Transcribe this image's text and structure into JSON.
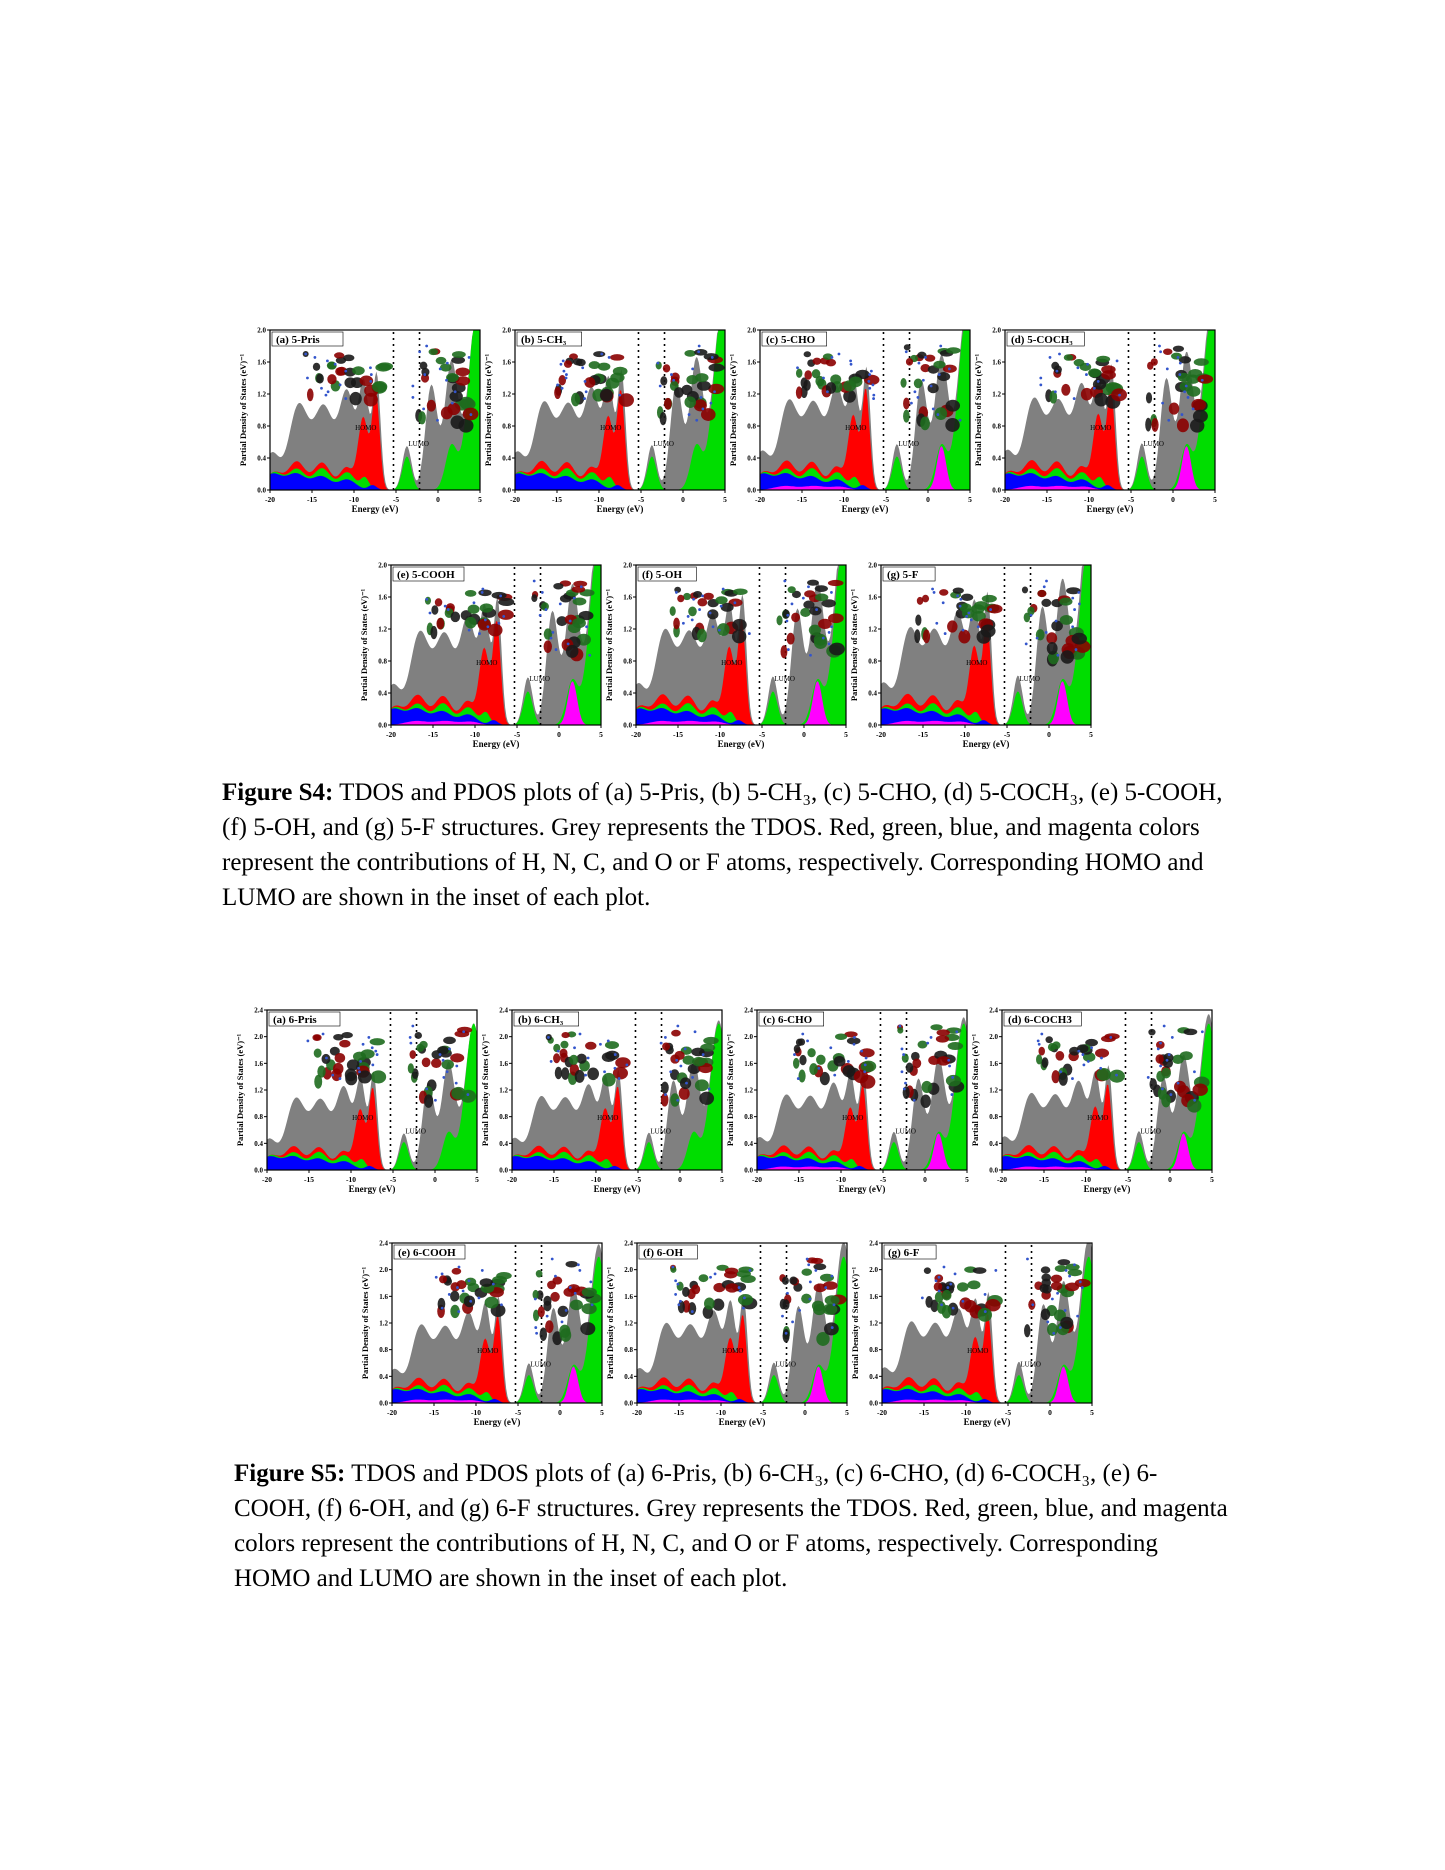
{
  "common": {
    "ylabel": "Partial Density of States (eV)⁻¹",
    "xlabel": "Energy (eV)",
    "homo_label": "HOMO",
    "lumo_label": "LUMO",
    "colors": {
      "tdos": "#808080",
      "H": "#ff0000",
      "N": "#00dd00",
      "C": "#0000ff",
      "O_or_F": "#ff00ff",
      "molecule_dark": "#1a1a1a",
      "molecule_green": "#1e6b1e",
      "molecule_red": "#8b0000"
    }
  },
  "figures": [
    {
      "id": "S4",
      "caption_label": "Figure S4:",
      "caption_text": " TDOS and PDOS plots of (a) 5-Pris, (b) 5-CH₃, (c) 5-CHO, (d) 5-COCH₃, (e) 5-COOH, (f) 5-OH, and (g) 5-F structures. Grey represents the TDOS. Red, green, blue, and magenta colors represent the contributions of H, N, C, and O or F atoms, respectively. Corresponding HOMO and LUMO are shown in the inset of each plot.",
      "panels": [
        {
          "title": "(a) 5-Pris",
          "has_O": false
        },
        {
          "title": "(b) 5-CH₃",
          "has_O": false
        },
        {
          "title": "(c) 5-CHO",
          "has_O": true
        },
        {
          "title": "(d) 5-COCH₃",
          "has_O": true
        },
        {
          "title": "(e) 5-COOH",
          "has_O": true
        },
        {
          "title": "(f) 5-OH",
          "has_O": true
        },
        {
          "title": "(g) 5-F",
          "has_O": true
        }
      ],
      "chart_data": {
        "type": "area",
        "xlim": [
          -20,
          5
        ],
        "ylim": [
          0,
          2.0
        ],
        "xticks": [
          "-20",
          "-15",
          "-10",
          "-5",
          "0",
          "5"
        ],
        "yticks": [
          "0.0",
          "0.4",
          "0.8",
          "1.2",
          "1.6",
          "2.0"
        ]
      }
    },
    {
      "id": "S5",
      "caption_label": "Figure S5:",
      "caption_text": " TDOS and PDOS plots of (a) 6-Pris, (b) 6-CH₃, (c) 6-CHO, (d) 6-COCH₃, (e) 6-COOH, (f) 6-OH, and (g) 6-F structures. Grey represents the TDOS. Red, green, blue, and magenta colors represent the contributions of H, N, C, and O or F atoms, respectively. Corresponding HOMO and LUMO are shown in the inset of each plot.",
      "panels": [
        {
          "title": "(a) 6-Pris",
          "has_O": false
        },
        {
          "title": "(b) 6-CH₃",
          "has_O": false
        },
        {
          "title": "(c) 6-CHO",
          "has_O": true
        },
        {
          "title": "(d) 6-COCH3",
          "has_O": true
        },
        {
          "title": "(e) 6-COOH",
          "has_O": true
        },
        {
          "title": "(f) 6-OH",
          "has_O": true
        },
        {
          "title": "(g) 6-F",
          "has_O": true
        }
      ],
      "chart_data": {
        "type": "area",
        "xlim": [
          -20,
          5
        ],
        "ylim": [
          0,
          2.4
        ],
        "xticks": [
          "-20",
          "-15",
          "-10",
          "-5",
          "0",
          "5"
        ],
        "yticks": [
          "0.0",
          "0.4",
          "0.8",
          "1.2",
          "1.6",
          "2.0",
          "2.4"
        ]
      }
    }
  ]
}
